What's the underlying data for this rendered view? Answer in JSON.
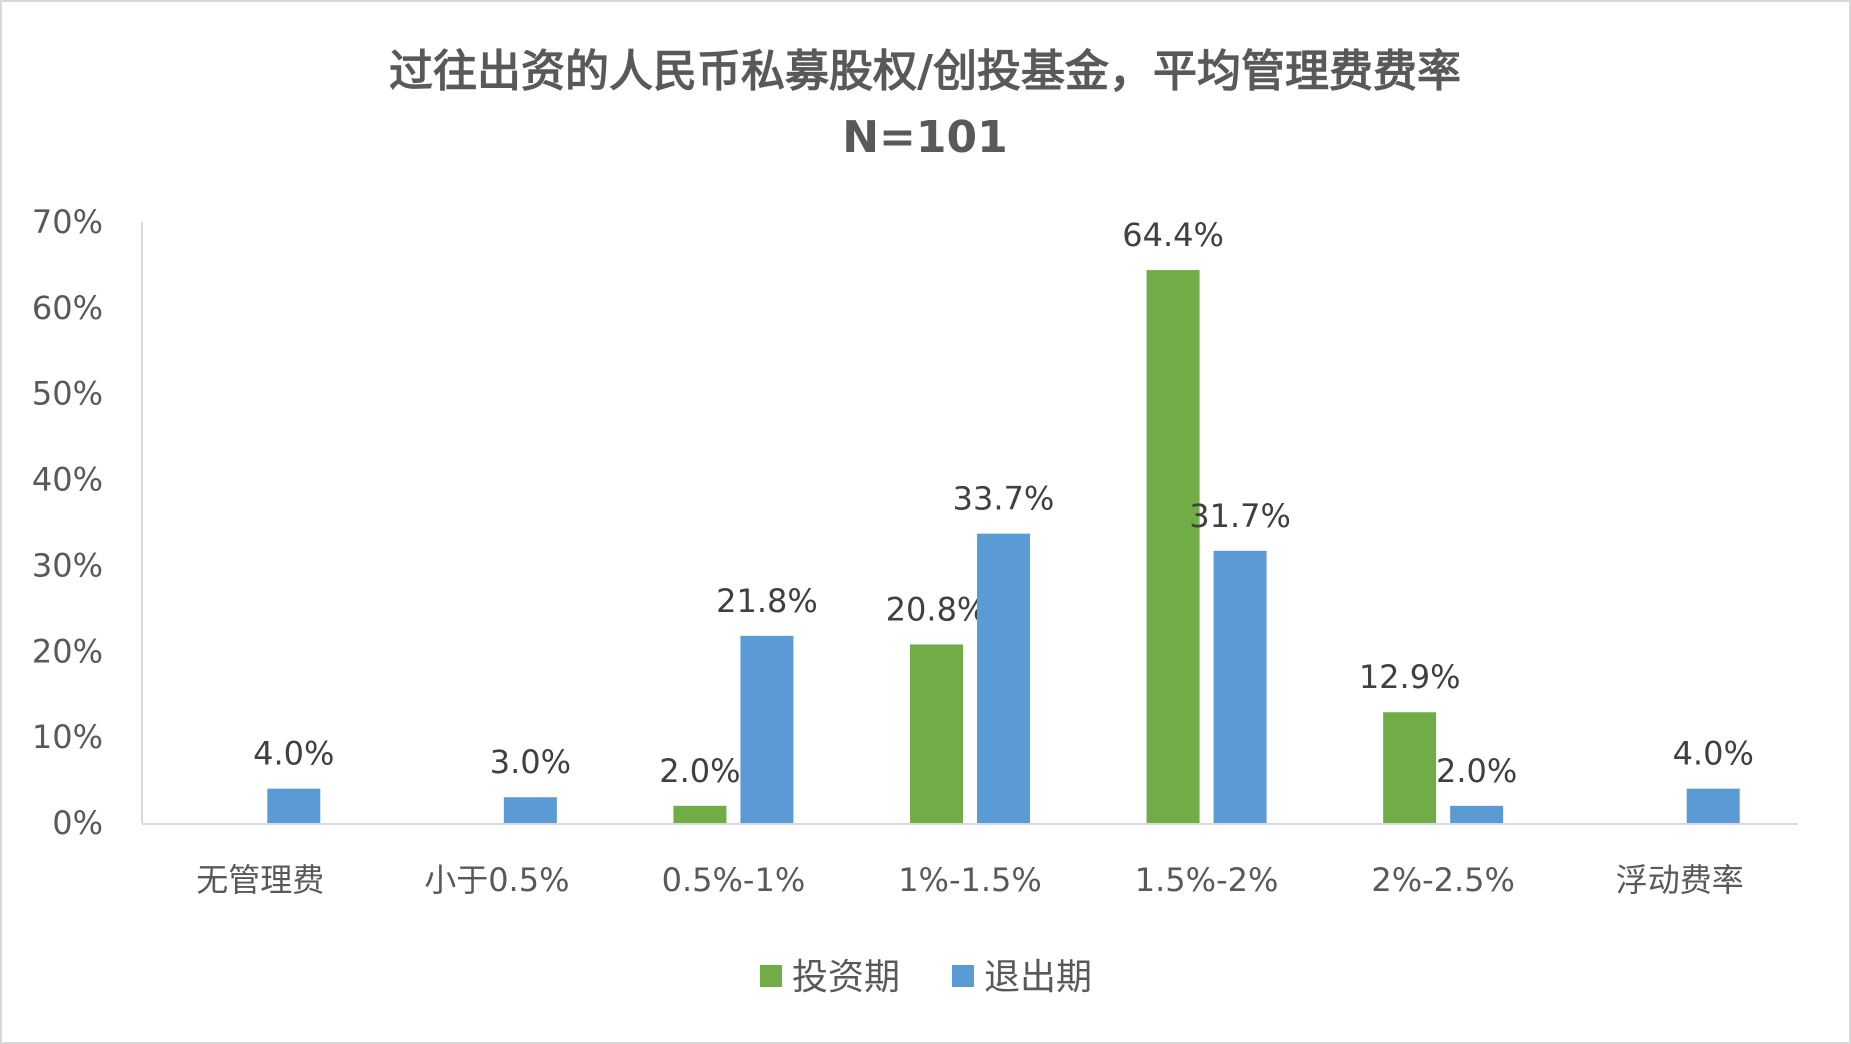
{
  "chart_data": {
    "type": "bar",
    "title": "过往出资的人民币私募股权/创投基金，平均管理费费率",
    "subtitle": "N=101",
    "xlabel": "",
    "ylabel": "",
    "ylim": [
      0,
      70
    ],
    "yticks": [
      "0%",
      "10%",
      "20%",
      "30%",
      "40%",
      "50%",
      "60%",
      "70%"
    ],
    "grid": false,
    "legend_position": "bottom",
    "categories": [
      "无管理费",
      "小于0.5%",
      "0.5%-1%",
      "1%-1.5%",
      "1.5%-2%",
      "2%-2.5%",
      "浮动费率"
    ],
    "series": [
      {
        "name": "投资期",
        "color": "#70AD47",
        "values": [
          null,
          null,
          2.0,
          20.8,
          64.4,
          12.9,
          null
        ],
        "labels": [
          "",
          "",
          "2.0%",
          "20.8%",
          "64.4%",
          "12.9%",
          ""
        ]
      },
      {
        "name": "退出期",
        "color": "#5B9BD5",
        "values": [
          4.0,
          3.0,
          21.8,
          33.7,
          31.7,
          2.0,
          4.0
        ],
        "labels": [
          "4.0%",
          "3.0%",
          "21.8%",
          "33.7%",
          "31.7%",
          "2.0%",
          "4.0%"
        ]
      }
    ]
  }
}
